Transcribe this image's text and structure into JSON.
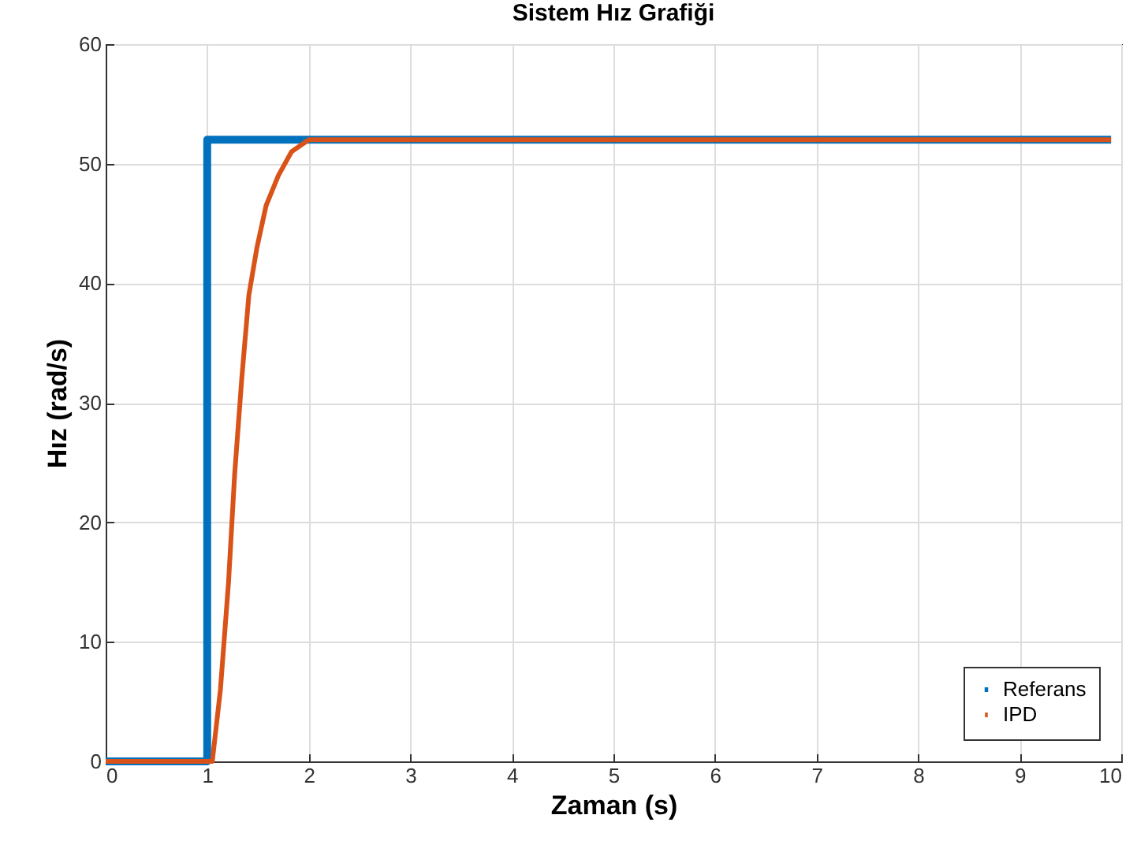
{
  "chart_data": {
    "type": "line",
    "title": "Sistem Hız Grafiği",
    "xlabel": "Zaman (s)",
    "ylabel": "Hız (rad/s)",
    "xlim": [
      0,
      10
    ],
    "ylim": [
      0,
      60
    ],
    "xticks": [
      0,
      1,
      2,
      3,
      4,
      5,
      6,
      7,
      8,
      9,
      10
    ],
    "yticks": [
      0,
      10,
      20,
      30,
      40,
      50,
      60
    ],
    "grid": true,
    "legend": "bottom right",
    "line_style": "solid",
    "series": [
      {
        "name": "Referans",
        "color": "#0072bd",
        "x": [
          0,
          1,
          1,
          9.9
        ],
        "values": [
          0,
          0,
          52,
          52
        ]
      },
      {
        "name": "IPD",
        "color": "#d95319",
        "x": [
          0,
          1,
          1.05,
          1.13,
          1.21,
          1.27,
          1.34,
          1.41,
          1.49,
          1.58,
          1.7,
          1.83,
          2.0,
          9.9
        ],
        "values": [
          0,
          0,
          0,
          6,
          15,
          24,
          32,
          39,
          43,
          46.5,
          49,
          51,
          52,
          52
        ]
      }
    ]
  }
}
